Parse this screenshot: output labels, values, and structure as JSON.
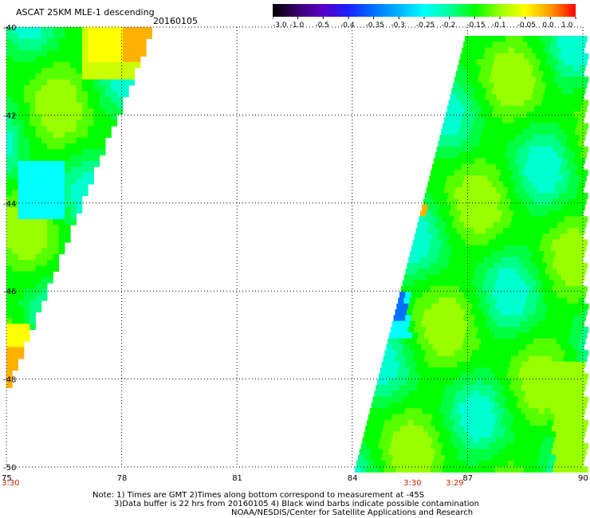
{
  "header": {
    "title": "ASCAT 25KM MLE-1 descending",
    "date": "20160105"
  },
  "colorbar": {
    "labels": [
      "-3.0",
      "-1.0",
      "-0.5",
      "-0.4",
      "-0.35",
      "-0.3",
      "-0.25",
      "-0.2",
      "-0.15",
      "-0.1",
      "-0.05",
      "0.0",
      "1.0"
    ],
    "colors": [
      "#000000",
      "#3a0070",
      "#5b00c8",
      "#1a20ff",
      "#0070ff",
      "#00b4ff",
      "#00ffff",
      "#00ff99",
      "#00ff00",
      "#99ff00",
      "#ffff00",
      "#ff9900",
      "#ff0000"
    ]
  },
  "axes": {
    "x_ticks": [
      "75",
      "78",
      "81",
      "84",
      "87",
      "90"
    ],
    "y_ticks": [
      "-40",
      "-42",
      "-44",
      "-46",
      "-48",
      "-50"
    ],
    "x_range": [
      75,
      90
    ],
    "y_range": [
      -50,
      -40
    ]
  },
  "times": [
    {
      "label": "3:30",
      "lon": 75
    },
    {
      "label": "3:30",
      "lon": 85.5
    },
    {
      "label": "3:29",
      "lon": 86.6
    }
  ],
  "notes": [
    "Note: 1) Times are GMT 2)Times along bottom correspond to measurement at -45S",
    "3)Data buffer is 22 hrs from 20160105 4) Black wind barbs indicate possible contamination",
    "NOAA/NESDIS/Center for Satellite Applications and Research"
  ]
}
